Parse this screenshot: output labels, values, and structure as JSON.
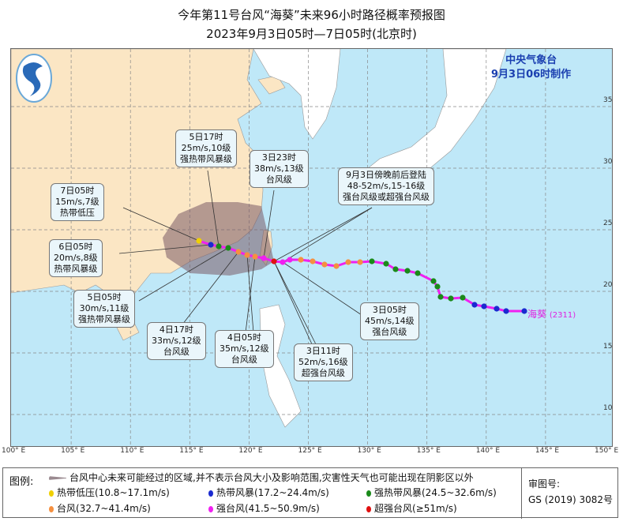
{
  "title": "今年第11号台风“海葵”未来96小时路径概率预报图",
  "subtitle": "2023年9月3日05时—7日05时(北京时)",
  "agency": {
    "name": "中央气象台",
    "made": "9月3日06时制作"
  },
  "typhoon": {
    "name": "海葵",
    "code": "(2311)"
  },
  "lon_ticks": [
    "100° E",
    "105° E",
    "110° E",
    "115° E",
    "120° E",
    "125° E",
    "130° E",
    "135° E",
    "140° E",
    "145° E",
    "150° E"
  ],
  "lat_ticks": [
    "10",
    "15",
    "20",
    "25",
    "30",
    "35"
  ],
  "labels": [
    {
      "time": "5日17时",
      "wind": "25m/s,10级",
      "level": "强热带风暴级"
    },
    {
      "time": "3日23时",
      "wind": "38m/s,13级",
      "level": "台风级"
    },
    {
      "time": "9月3日傍晚前后登陆",
      "wind": "48-52m/s,15-16级",
      "level": "强台风级或超强台风级"
    },
    {
      "time": "7日05时",
      "wind": "15m/s,7级",
      "level": "热带低压"
    },
    {
      "time": "6日05时",
      "wind": "20m/s,8级",
      "level": "热带风暴级"
    },
    {
      "time": "5日05时",
      "wind": "30m/s,11级",
      "level": "强热带风暴级"
    },
    {
      "time": "4日17时",
      "wind": "33m/s,12级",
      "level": "台风级"
    },
    {
      "time": "4日05时",
      "wind": "35m/s,12级",
      "level": "台风级"
    },
    {
      "time": "3日11时",
      "wind": "52m/s,16级",
      "level": "超强台风级"
    },
    {
      "time": "3日05时",
      "wind": "45m/s,14级",
      "level": "强台风级"
    }
  ],
  "legend": {
    "title": "图例:",
    "cone": "台风中心未来可能经过的区域,并不表示台风大小及影响范围,灾害性天气也可能出现在阴影区以外",
    "items": [
      {
        "label": "热带低压(10.8~17.1m/s)",
        "color": "#f0d000"
      },
      {
        "label": "热带风暴(17.2~24.4m/s)",
        "color": "#1a2ad0"
      },
      {
        "label": "强热带风暴(24.5~32.6m/s)",
        "color": "#1a8a1a"
      },
      {
        "label": "台风(32.7~41.4m/s)",
        "color": "#f59040"
      },
      {
        "label": "强台风(41.5~50.9m/s)",
        "color": "#f020f0"
      },
      {
        "label": "超强台风(≥51m/s)",
        "color": "#e01010"
      }
    ],
    "approval_label": "审图号:",
    "approval_no": "GS (2019) 3082号"
  },
  "colors": {
    "sea": "#bfe8f8",
    "land_china": "#fbe6c4",
    "land_other": "#ffffff",
    "track": "#f020f0",
    "cone": "#8a6a70"
  }
}
